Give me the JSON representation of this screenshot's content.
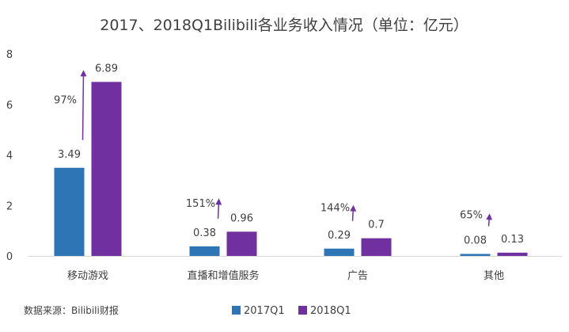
{
  "chart_data": {
    "type": "bar",
    "title": "2017、2018Q1Bilibili各业务收入情况（单位：亿元）",
    "categories": [
      "移动游戏",
      "直播和增值服务",
      "广告",
      "其他"
    ],
    "series": [
      {
        "name": "2017Q1",
        "values": [
          3.49,
          0.38,
          0.29,
          0.08
        ],
        "labels": [
          "3.49",
          "0.38",
          "0.29",
          "0.08"
        ],
        "color": "#2e75b6"
      },
      {
        "name": "2018Q1",
        "values": [
          6.89,
          0.96,
          0.7,
          0.13
        ],
        "labels": [
          "6.89",
          "0.96",
          "0.7",
          "0.13"
        ],
        "color": "#7030a0"
      }
    ],
    "growth": [
      "97%",
      "151%",
      "144%",
      "65%"
    ],
    "ylim": [
      0,
      8
    ],
    "yticks": [
      "0",
      "2",
      "4",
      "6",
      "8"
    ],
    "grid": false,
    "legend_position": "bottom",
    "arrow_color": "#7030a0"
  },
  "source": "数据来源：Bilibili财报"
}
